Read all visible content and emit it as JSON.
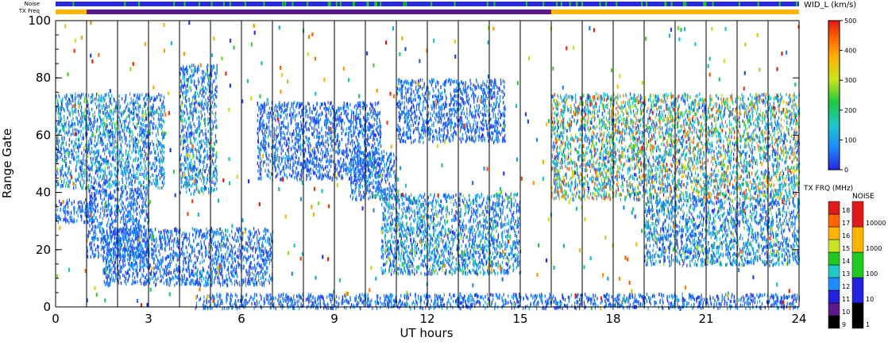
{
  "chart_data": {
    "type": "heatmap",
    "title": "",
    "xlabel": "UT hours",
    "ylabel": "Range Gate",
    "xlim": [
      0,
      24
    ],
    "ylim": [
      0,
      100
    ],
    "x_ticks": [
      "0",
      "3",
      "6",
      "9",
      "12",
      "15",
      "18",
      "21",
      "24"
    ],
    "y_ticks": [
      "0",
      "20",
      "40",
      "60",
      "80",
      "100"
    ],
    "minor_x_step": 1,
    "strip_labels": {
      "noise": "Noise",
      "txfreq": "TX Freq"
    },
    "txfreq_change_hour": 16,
    "colorbars": {
      "width": {
        "title": "WID_L (km/s)",
        "ticks": [
          "0",
          "100",
          "200",
          "300",
          "400",
          "500"
        ],
        "range": [
          0,
          500
        ]
      },
      "txfreq": {
        "title": "TX FRQ (MHz)",
        "ticks": [
          "9",
          "10",
          "11",
          "12",
          "13",
          "14",
          "15",
          "16",
          "17",
          "18"
        ],
        "colors": [
          "#000000",
          "#5a1a8a",
          "#2222dd",
          "#1e8cff",
          "#21c8c8",
          "#21c821",
          "#c8e321",
          "#ffb400",
          "#ff6400",
          "#e11a1a"
        ]
      },
      "noise": {
        "title": "NOISE",
        "ticks": [
          "1",
          "10",
          "100",
          "1000",
          "10000"
        ],
        "colors": [
          "#000000",
          "#2222dd",
          "#21c821",
          "#ffb400",
          "#e11a1a"
        ]
      }
    },
    "echo_regions": [
      {
        "t0": 0.0,
        "t1": 1.2,
        "g0": 30,
        "g1": 38,
        "level": "low"
      },
      {
        "t0": 1.0,
        "t1": 3.0,
        "g0": 18,
        "g1": 42,
        "level": "low"
      },
      {
        "t0": 1.5,
        "t1": 7.0,
        "g0": 8,
        "g1": 28,
        "level": "low"
      },
      {
        "t0": 0.0,
        "t1": 3.5,
        "g0": 42,
        "g1": 75,
        "level": "mixed"
      },
      {
        "t0": 4.0,
        "t1": 5.2,
        "g0": 40,
        "g1": 85,
        "level": "mixed"
      },
      {
        "t0": 6.5,
        "t1": 10.5,
        "g0": 45,
        "g1": 72,
        "level": "low"
      },
      {
        "t0": 9.5,
        "t1": 11.0,
        "g0": 38,
        "g1": 55,
        "level": "low"
      },
      {
        "t0": 11.0,
        "t1": 14.5,
        "g0": 58,
        "g1": 80,
        "level": "low"
      },
      {
        "t0": 10.5,
        "t1": 15.0,
        "g0": 12,
        "g1": 40,
        "level": "mixed"
      },
      {
        "t0": 4.5,
        "t1": 24.0,
        "g0": 0,
        "g1": 5,
        "level": "low"
      },
      {
        "t0": 16.0,
        "t1": 24.0,
        "g0": 38,
        "g1": 75,
        "level": "high"
      },
      {
        "t0": 19.0,
        "t1": 24.0,
        "g0": 15,
        "g1": 38,
        "level": "mixed"
      }
    ]
  }
}
